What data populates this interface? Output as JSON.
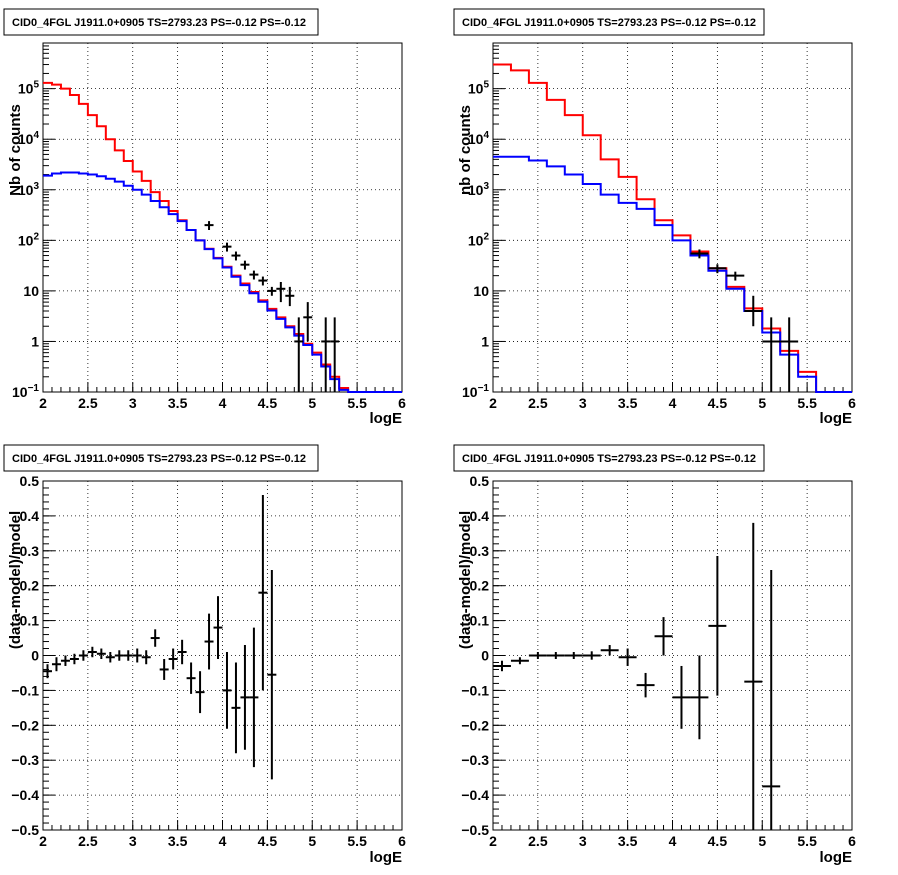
{
  "chart_data": [
    {
      "type": "line",
      "title": "CID0_4FGL J1911.0+0905 TS=2793.23 PS=-0.12 PS=-0.12",
      "xlabel": "logE",
      "ylabel": "Nb of counts",
      "xlim": [
        2,
        6
      ],
      "ylim": [
        0.1,
        800000
      ],
      "yscale": "log",
      "grid": true,
      "xticks": [
        "2",
        "2.5",
        "3",
        "3.5",
        "4",
        "4.5",
        "5",
        "5.5",
        "6"
      ],
      "yticks": [
        {
          "value": 0.1,
          "base": "10",
          "exp": "−1"
        },
        {
          "value": 1,
          "label": "1"
        },
        {
          "value": 10,
          "label": "10"
        },
        {
          "value": 100,
          "base": "10",
          "exp": "2"
        },
        {
          "value": 1000,
          "base": "10",
          "exp": "3"
        },
        {
          "value": 10000,
          "base": "10",
          "exp": "4"
        },
        {
          "value": 100000,
          "base": "10",
          "exp": "5"
        }
      ],
      "bin_edges": [
        2.0,
        2.1,
        2.2,
        2.3,
        2.4,
        2.5,
        2.6,
        2.7,
        2.8,
        2.9,
        3.0,
        3.1,
        3.2,
        3.3,
        3.4,
        3.5,
        3.6,
        3.7,
        3.8,
        3.9,
        4.0,
        4.1,
        4.2,
        4.3,
        4.4,
        4.5,
        4.6,
        4.7,
        4.8,
        4.9,
        5.0,
        5.1,
        5.2,
        5.3,
        5.4,
        5.5,
        5.6,
        5.7,
        5.8,
        5.9,
        6.0
      ],
      "series": [
        {
          "color": "#ff0000",
          "style": "hist",
          "values": [
            130000,
            120000,
            100000,
            75000,
            50000,
            30000,
            18000,
            10000,
            6000,
            3700,
            2300,
            1500,
            900,
            600,
            380,
            250,
            160,
            100,
            68,
            45,
            30,
            20,
            14,
            9.5,
            6.5,
            4.4,
            3.0,
            2.0,
            1.4,
            0.9,
            0.6,
            0.35,
            0.2,
            0.12,
            0.1,
            0.1,
            0.1,
            0.1,
            0.1,
            0.1
          ]
        },
        {
          "color": "#0000ff",
          "style": "hist",
          "values": [
            1900,
            2100,
            2200,
            2200,
            2100,
            2000,
            1850,
            1650,
            1450,
            1200,
            1000,
            800,
            600,
            450,
            330,
            240,
            160,
            100,
            67,
            44,
            29,
            19,
            13,
            9,
            6.1,
            4.1,
            2.8,
            1.9,
            1.3,
            0.85,
            0.55,
            0.32,
            0.18,
            0.11,
            0.09,
            0.09,
            0.09,
            0.09,
            0.09,
            0.09
          ]
        },
        {
          "color": "#000000",
          "style": "points",
          "points": [
            {
              "x": 3.85,
              "y": 200,
              "ex": 0.05
            },
            {
              "x": 4.05,
              "y": 75,
              "ex": 0.05
            },
            {
              "x": 4.15,
              "y": 50,
              "ex": 0.05
            },
            {
              "x": 4.25,
              "y": 33,
              "ex": 0.05
            },
            {
              "x": 4.35,
              "y": 21,
              "ex": 0.05
            },
            {
              "x": 4.45,
              "y": 16,
              "ex": 0.05
            },
            {
              "x": 4.55,
              "y": 10,
              "ex": 0.05
            },
            {
              "x": 4.65,
              "y": 11,
              "ex": 0.05,
              "ylo": 6,
              "yhi": 15
            },
            {
              "x": 4.75,
              "y": 8,
              "ex": 0.05,
              "ylo": 5,
              "yhi": 12
            },
            {
              "x": 4.85,
              "y": 1,
              "ex": 0.05,
              "ylo": 0.1,
              "yhi": 3
            },
            {
              "x": 4.95,
              "y": 3,
              "ex": 0.05,
              "ylo": 1,
              "yhi": 6
            },
            {
              "x": 5.15,
              "y": 1,
              "ex": 0.05,
              "ylo": 0.1,
              "yhi": 3
            },
            {
              "x": 5.25,
              "y": 1,
              "ex": 0.05,
              "ylo": 0.1,
              "yhi": 3
            }
          ]
        }
      ]
    },
    {
      "type": "line",
      "title": "CID0_4FGL J1911.0+0905 TS=2793.23 PS=-0.12 PS=-0.12",
      "xlabel": "logE",
      "ylabel": "nb of counts",
      "xlim": [
        2,
        6
      ],
      "ylim": [
        0.1,
        800000
      ],
      "yscale": "log",
      "grid": true,
      "xticks": [
        "2",
        "2.5",
        "3",
        "3.5",
        "4",
        "4.5",
        "5",
        "5.5",
        "6"
      ],
      "yticks": [
        {
          "value": 0.1,
          "base": "10",
          "exp": "−1"
        },
        {
          "value": 1,
          "label": "1"
        },
        {
          "value": 10,
          "label": "10"
        },
        {
          "value": 100,
          "base": "10",
          "exp": "2"
        },
        {
          "value": 1000,
          "base": "10",
          "exp": "3"
        },
        {
          "value": 10000,
          "base": "10",
          "exp": "4"
        },
        {
          "value": 100000,
          "base": "10",
          "exp": "5"
        }
      ],
      "bin_edges": [
        2.0,
        2.2,
        2.4,
        2.6,
        2.8,
        3.0,
        3.2,
        3.4,
        3.6,
        3.8,
        4.0,
        4.2,
        4.4,
        4.6,
        4.8,
        5.0,
        5.2,
        5.4,
        5.6,
        5.8,
        6.0
      ],
      "series": [
        {
          "color": "#ff0000",
          "style": "hist",
          "values": [
            300000,
            230000,
            130000,
            60000,
            30000,
            12000,
            4000,
            1800,
            650,
            250,
            125,
            60,
            28,
            12,
            4.5,
            1.8,
            0.65,
            0.25,
            0.1,
            0.1
          ]
        },
        {
          "color": "#0000ff",
          "style": "hist",
          "values": [
            4500,
            4500,
            3800,
            2900,
            2000,
            1300,
            800,
            550,
            420,
            200,
            100,
            50,
            25,
            11,
            4,
            1.5,
            0.55,
            0.2,
            0.1,
            0.1
          ]
        },
        {
          "color": "#000000",
          "style": "points",
          "points": [
            {
              "x": 4.3,
              "y": 55,
              "ex": 0.1
            },
            {
              "x": 4.5,
              "y": 28,
              "ex": 0.1
            },
            {
              "x": 4.7,
              "y": 20,
              "ex": 0.1
            },
            {
              "x": 4.9,
              "y": 4,
              "ex": 0.1,
              "ylo": 2,
              "yhi": 8
            },
            {
              "x": 5.1,
              "y": 1,
              "ex": 0.1,
              "ylo": 0.1,
              "yhi": 3
            },
            {
              "x": 5.3,
              "y": 1,
              "ex": 0.1,
              "ylo": 0.1,
              "yhi": 3
            }
          ]
        }
      ]
    },
    {
      "type": "scatter",
      "title": "CID0_4FGL J1911.0+0905 TS=2793.23 PS=-0.12 PS=-0.12",
      "xlabel": "logE",
      "ylabel": "(data-model)/model",
      "xlim": [
        2,
        6
      ],
      "ylim": [
        -0.5,
        0.5
      ],
      "grid": true,
      "xticks": [
        "2",
        "2.5",
        "3",
        "3.5",
        "4",
        "4.5",
        "5",
        "5.5",
        "6"
      ],
      "yticks": [
        "−0.5",
        "−0.4",
        "−0.3",
        "−0.2",
        "−0.1",
        "0",
        "0.1",
        "0.2",
        "0.3",
        "0.4",
        "0.5"
      ],
      "series": [
        {
          "color": "#000000",
          "points": [
            {
              "x": 2.05,
              "y": -0.045,
              "ex": 0.05,
              "ey": 0.02
            },
            {
              "x": 2.15,
              "y": -0.025,
              "ex": 0.05,
              "ey": 0.02
            },
            {
              "x": 2.25,
              "y": -0.015,
              "ex": 0.05,
              "ey": 0.015
            },
            {
              "x": 2.35,
              "y": -0.01,
              "ex": 0.05,
              "ey": 0.015
            },
            {
              "x": 2.45,
              "y": 0.0,
              "ex": 0.05,
              "ey": 0.015
            },
            {
              "x": 2.55,
              "y": 0.01,
              "ex": 0.05,
              "ey": 0.015
            },
            {
              "x": 2.65,
              "y": 0.005,
              "ex": 0.05,
              "ey": 0.015
            },
            {
              "x": 2.75,
              "y": -0.005,
              "ex": 0.05,
              "ey": 0.015
            },
            {
              "x": 2.85,
              "y": 0.0,
              "ex": 0.05,
              "ey": 0.015
            },
            {
              "x": 2.95,
              "y": 0.0,
              "ex": 0.05,
              "ey": 0.015
            },
            {
              "x": 3.05,
              "y": 0.0,
              "ex": 0.05,
              "ey": 0.02
            },
            {
              "x": 3.15,
              "y": -0.005,
              "ex": 0.05,
              "ey": 0.02
            },
            {
              "x": 3.25,
              "y": 0.05,
              "ex": 0.05,
              "ey": 0.025
            },
            {
              "x": 3.35,
              "y": -0.04,
              "ex": 0.05,
              "ey": 0.03
            },
            {
              "x": 3.45,
              "y": -0.01,
              "ex": 0.05,
              "ey": 0.03
            },
            {
              "x": 3.55,
              "y": 0.01,
              "ex": 0.05,
              "ey": 0.035
            },
            {
              "x": 3.65,
              "y": -0.065,
              "ex": 0.05,
              "ey": 0.045
            },
            {
              "x": 3.75,
              "y": -0.105,
              "ex": 0.05,
              "ey": 0.06
            },
            {
              "x": 3.85,
              "y": 0.04,
              "ex": 0.05,
              "ey": 0.08
            },
            {
              "x": 3.95,
              "y": 0.08,
              "ex": 0.05,
              "ey": 0.09
            },
            {
              "x": 4.05,
              "y": -0.1,
              "ex": 0.05,
              "ey": 0.11
            },
            {
              "x": 4.15,
              "y": -0.15,
              "ex": 0.05,
              "ey": 0.13
            },
            {
              "x": 4.25,
              "y": -0.12,
              "ex": 0.05,
              "ey": 0.15
            },
            {
              "x": 4.35,
              "y": -0.12,
              "ex": 0.05,
              "ey": 0.2
            },
            {
              "x": 4.45,
              "y": 0.18,
              "ex": 0.05,
              "ey": 0.28
            },
            {
              "x": 4.55,
              "y": -0.055,
              "ex": 0.05,
              "ey": 0.3
            }
          ]
        }
      ]
    },
    {
      "type": "scatter",
      "title": "CID0_4FGL J1911.0+0905 TS=2793.23 PS=-0.12 PS=-0.12",
      "xlabel": "logE",
      "ylabel": "(data-model)/model",
      "xlim": [
        2,
        6
      ],
      "ylim": [
        -0.5,
        0.5
      ],
      "grid": true,
      "xticks": [
        "2",
        "2.5",
        "3",
        "3.5",
        "4",
        "4.5",
        "5",
        "5.5",
        "6"
      ],
      "yticks": [
        "−0.5",
        "−0.4",
        "−0.3",
        "−0.2",
        "−0.1",
        "0",
        "0.1",
        "0.2",
        "0.3",
        "0.4",
        "0.5"
      ],
      "series": [
        {
          "color": "#000000",
          "points": [
            {
              "x": 2.1,
              "y": -0.03,
              "ex": 0.1,
              "ey": 0.015
            },
            {
              "x": 2.3,
              "y": -0.015,
              "ex": 0.1,
              "ey": 0.01
            },
            {
              "x": 2.5,
              "y": 0.0,
              "ex": 0.1,
              "ey": 0.01
            },
            {
              "x": 2.7,
              "y": 0.0,
              "ex": 0.1,
              "ey": 0.01
            },
            {
              "x": 2.9,
              "y": 0.0,
              "ex": 0.1,
              "ey": 0.01
            },
            {
              "x": 3.1,
              "y": 0.0,
              "ex": 0.1,
              "ey": 0.012
            },
            {
              "x": 3.3,
              "y": 0.015,
              "ex": 0.1,
              "ey": 0.015
            },
            {
              "x": 3.5,
              "y": -0.005,
              "ex": 0.1,
              "ey": 0.025
            },
            {
              "x": 3.7,
              "y": -0.085,
              "ex": 0.1,
              "ey": 0.035
            },
            {
              "x": 3.9,
              "y": 0.055,
              "ex": 0.1,
              "ey": 0.055
            },
            {
              "x": 4.1,
              "y": -0.12,
              "ex": 0.1,
              "ey": 0.09
            },
            {
              "x": 4.3,
              "y": -0.12,
              "ex": 0.1,
              "ey": 0.12
            },
            {
              "x": 4.5,
              "y": 0.085,
              "ex": 0.1,
              "ey": 0.2
            },
            {
              "x": 4.9,
              "y": -0.075,
              "ex": 0.1,
              "ey": 0.455
            },
            {
              "x": 5.1,
              "y": -0.375,
              "ex": 0.1,
              "ey": 0.62
            }
          ]
        }
      ]
    }
  ]
}
